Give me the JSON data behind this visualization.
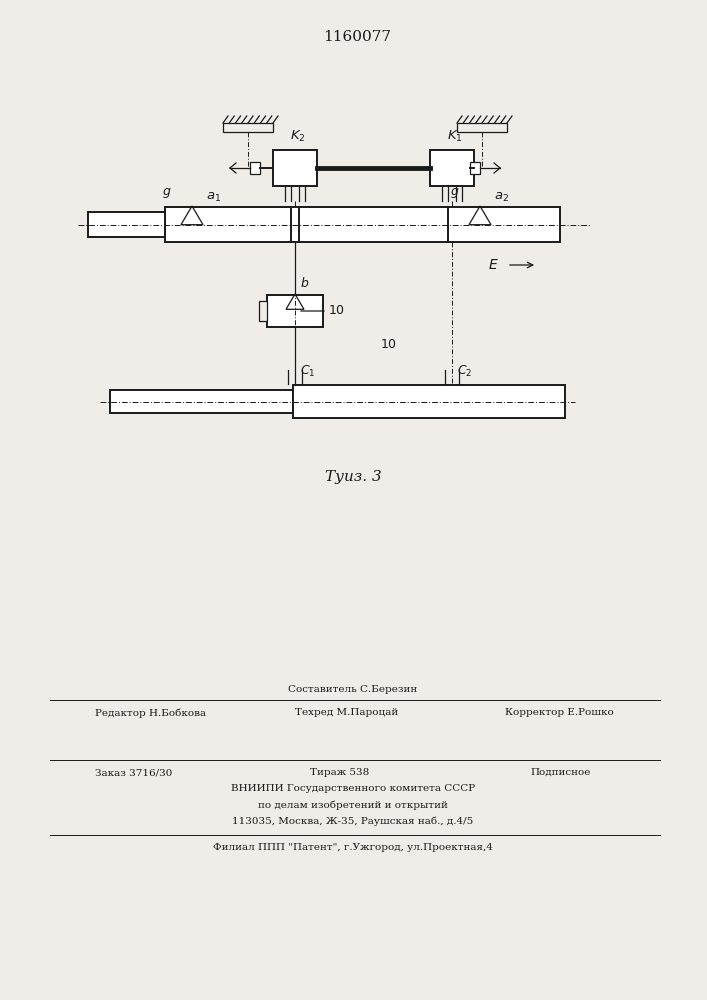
{
  "title": "1160077",
  "fig_caption": "Τуиз. 3",
  "bg_color": "#f0ede8",
  "ink": "#1a1a1a",
  "footer": {
    "sestavitel": "Составитель С.Березин",
    "redaktor": "Редактор Н.Бобкова",
    "tehred": "Техред М.Пароцай",
    "korrektor": "Корректор Е.Рошко",
    "zakaz": "Заказ 3716/30",
    "tirazh": "Тираж 538",
    "podpisnoe": "Подписное",
    "vniip1": "ВНИИПИ Государственного комитета СССР",
    "vniip2": "по делам изобретений и открытий",
    "vniip3": "113035, Москва, Ж-35, Раушская наб., д.4/5",
    "filial": "Филиал ППП \"Патент\", г.Ужгород, ул.Проектная,4"
  }
}
